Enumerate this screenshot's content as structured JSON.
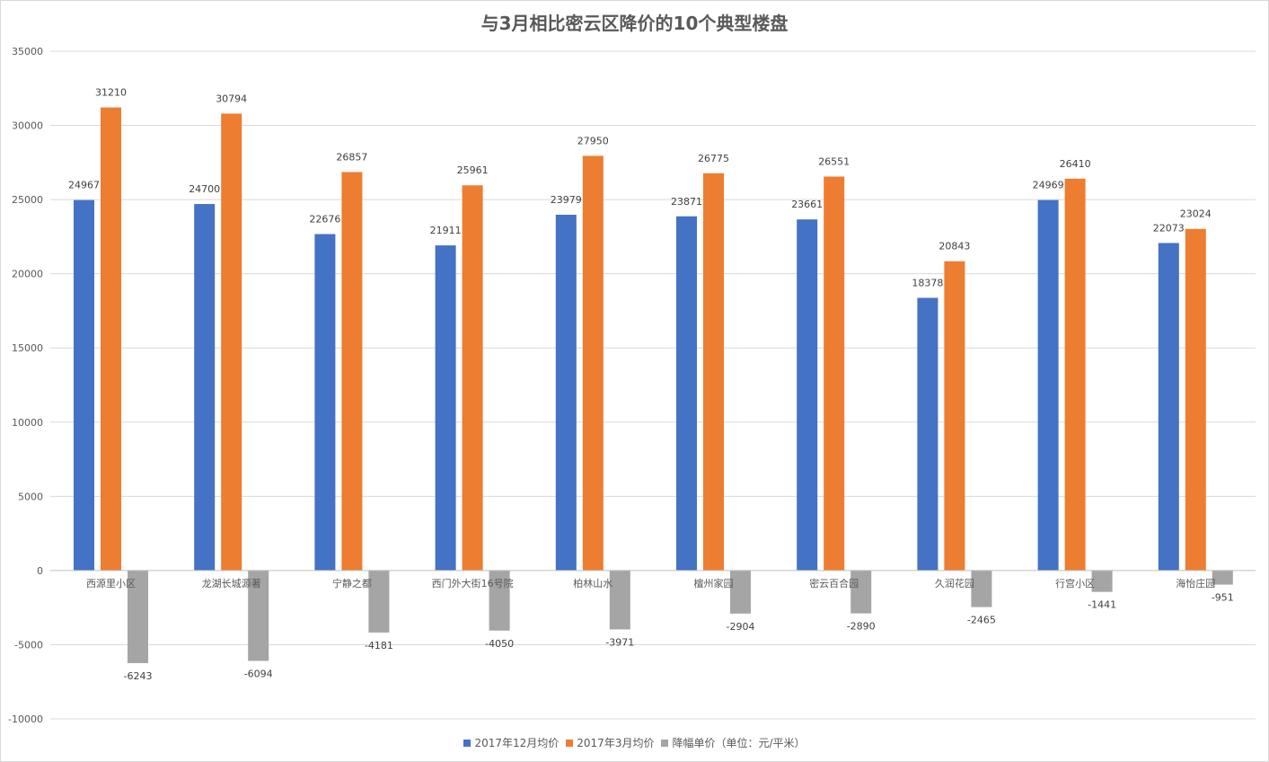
{
  "chart_data": {
    "type": "bar",
    "title": "与3月相比密云区降价的10个典型楼盘",
    "xlabel": "",
    "ylabel": "",
    "ylim": [
      -10000,
      35000
    ],
    "yticks": [
      35000,
      30000,
      25000,
      20000,
      15000,
      10000,
      5000,
      0,
      -5000,
      -10000
    ],
    "grid": true,
    "legend_position": "bottom",
    "categories": [
      "西源里小区",
      "龙湖长城源著",
      "宁静之都",
      "西门外大街16号院",
      "柏林山水",
      "檀州家园",
      "密云百合园",
      "久润花园",
      "行宫小区",
      "海怡庄园"
    ],
    "series": [
      {
        "name": "2017年12月均价",
        "color": "#4472c4",
        "values": [
          24967,
          24700,
          22676,
          21911,
          23979,
          23871,
          23661,
          18378,
          24969,
          22073
        ]
      },
      {
        "name": "2017年3月均价",
        "color": "#ed7d31",
        "values": [
          31210,
          30794,
          26857,
          25961,
          27950,
          26775,
          26551,
          20843,
          26410,
          23024
        ]
      },
      {
        "name": "降幅单价（单位：元/平米）",
        "color": "#a5a5a5",
        "values": [
          -6243,
          -6094,
          -4181,
          -4050,
          -3971,
          -2904,
          -2890,
          -2465,
          -1441,
          -951
        ]
      }
    ]
  }
}
